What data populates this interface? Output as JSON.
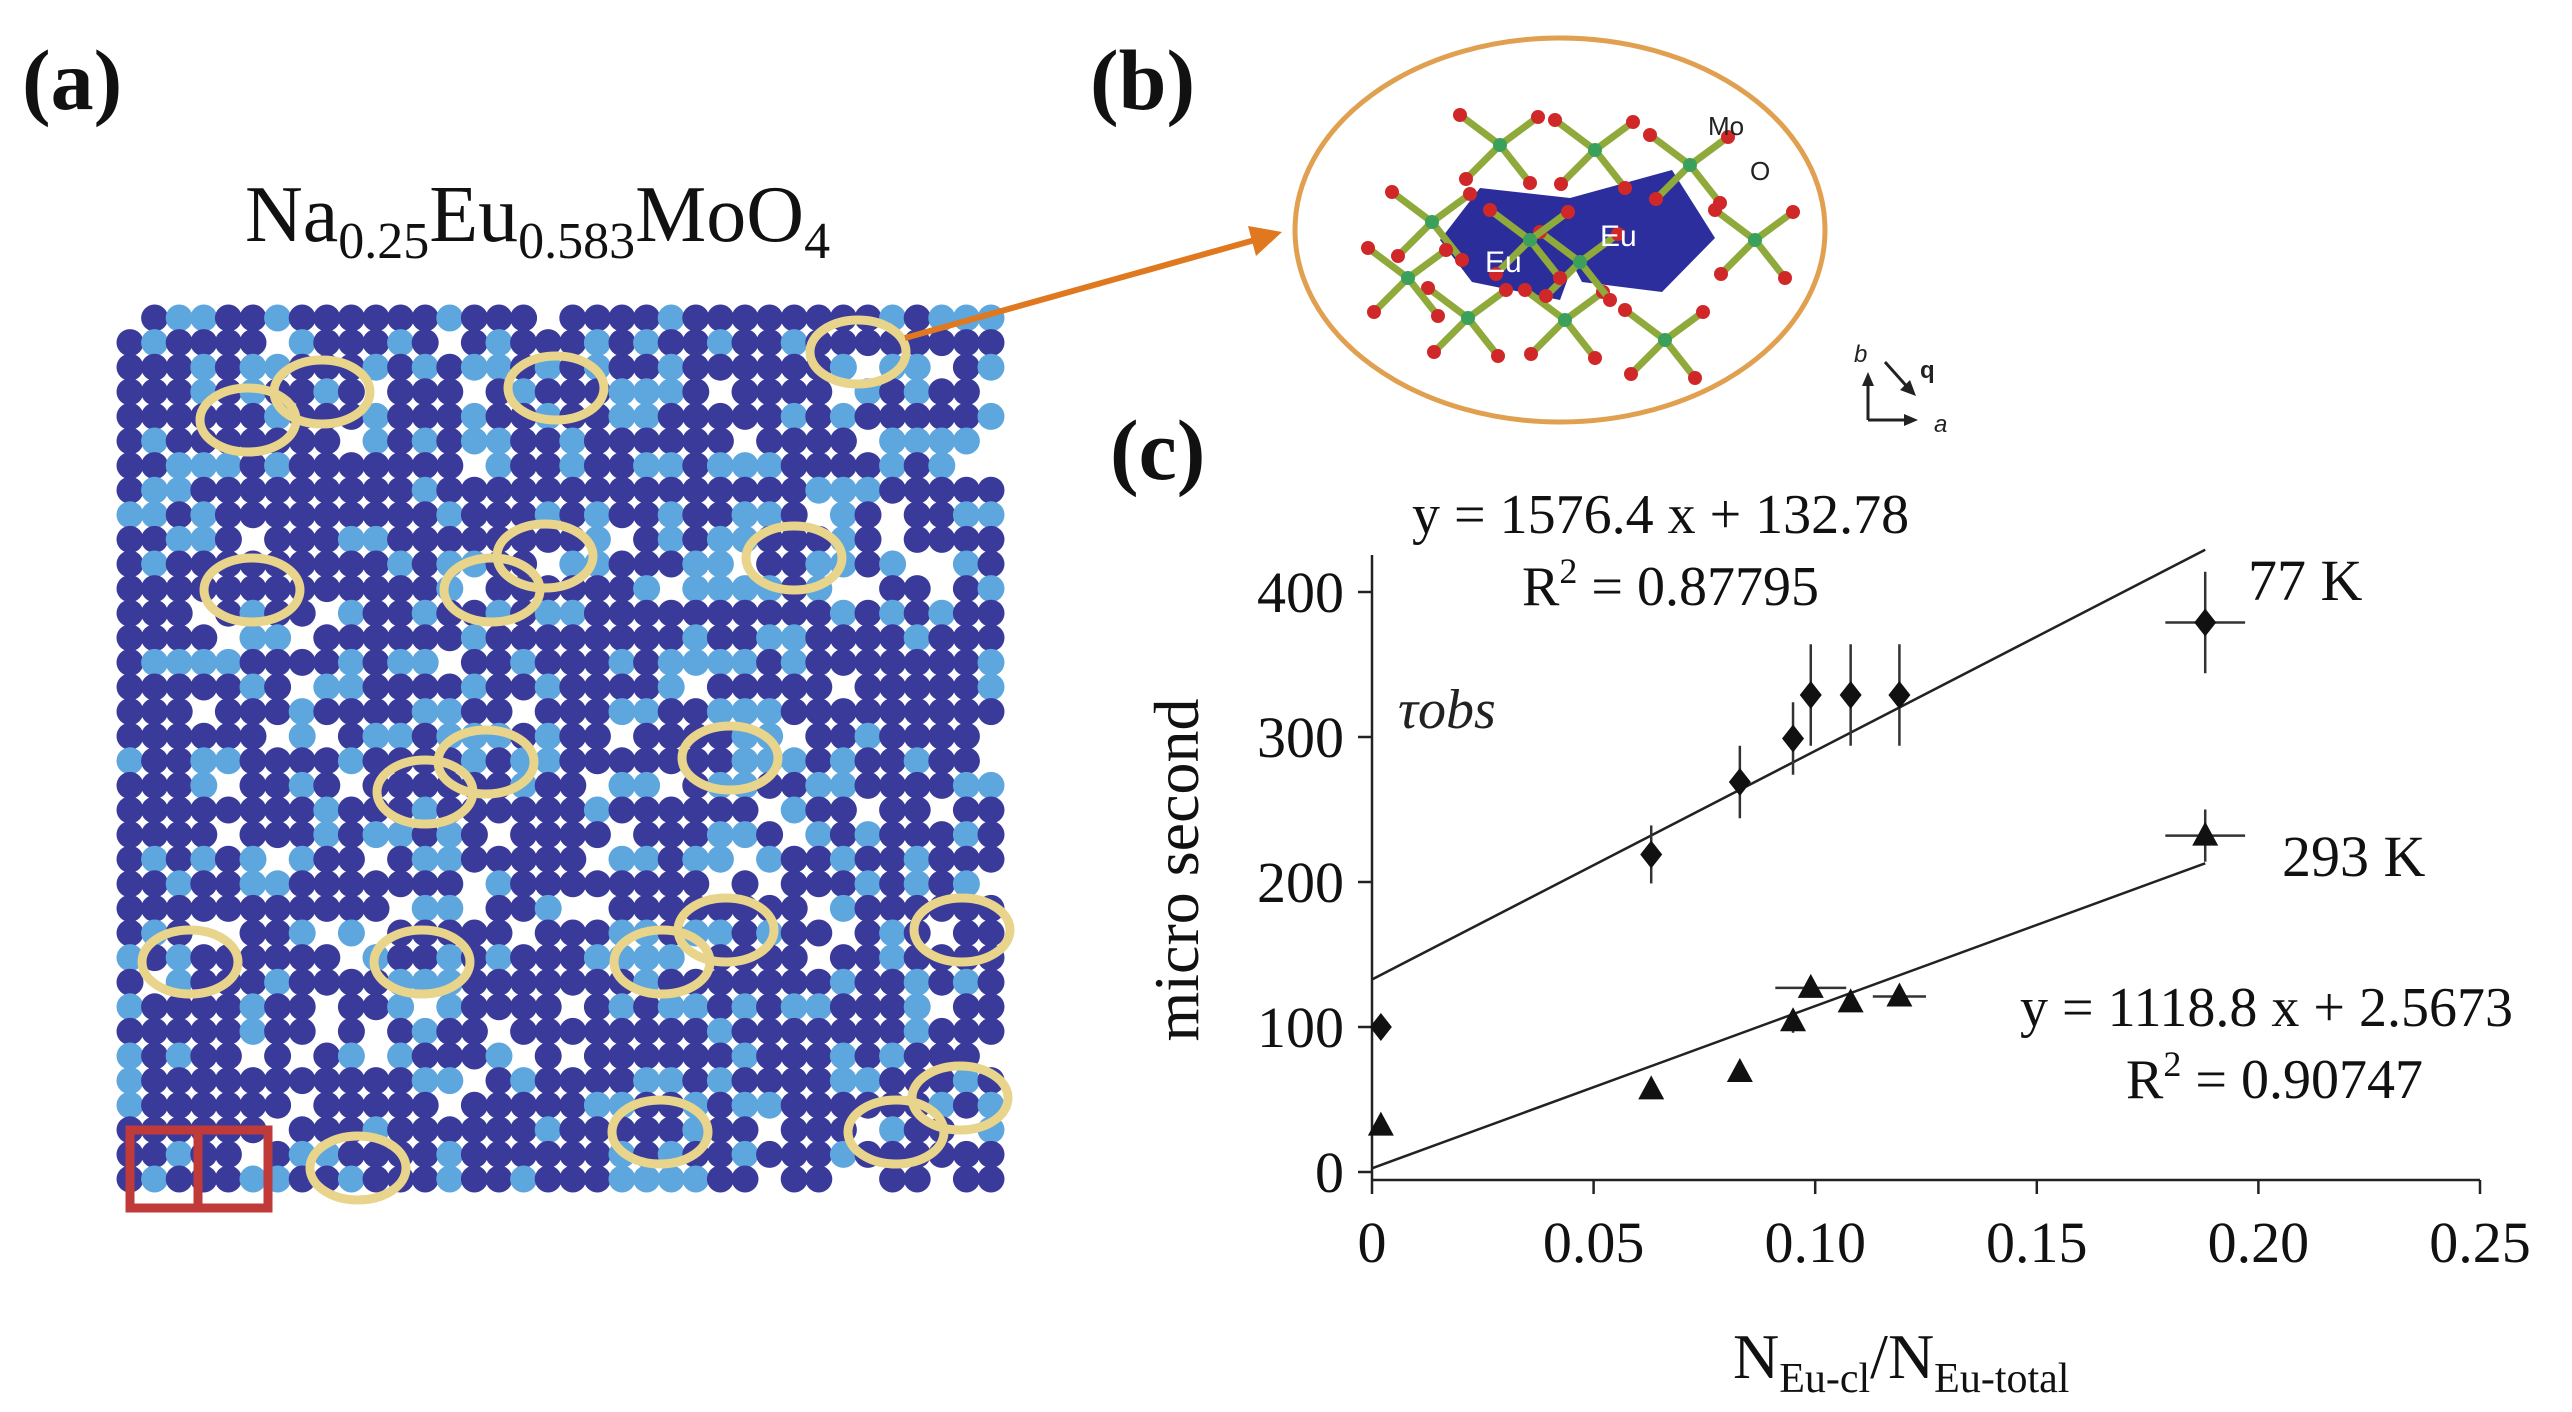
{
  "panels": {
    "a": {
      "label": "(a)",
      "formula": {
        "base1": "Na",
        "sub1": "0.25",
        "base2": "Eu",
        "sub2": "0.583",
        "base3": "MoO",
        "sub3": "4"
      },
      "colors": {
        "eu_site": "#3a3a9a",
        "na_site": "#5ea6de",
        "cluster_ring": "#e8d48a",
        "cell_box": "#c03a3a"
      }
    },
    "b": {
      "label": "(b)",
      "atoms": {
        "eu1": "Eu",
        "eu2": "Eu",
        "mo": "Mo",
        "o": "O"
      },
      "axes": {
        "b": "b",
        "q": "q",
        "a": "a"
      },
      "colors": {
        "polyhedron": "#2b2d9a",
        "bond": "#8faa3a",
        "oxygen": "#d02828",
        "mo": "#3aa05a",
        "ellipse": "#e0a050",
        "arrow": "#e07820"
      }
    },
    "c": {
      "label": "(c)"
    }
  },
  "chart_data": {
    "type": "scatter",
    "title": "",
    "xlabel": {
      "main": "N",
      "sub1": "Eu-cl",
      "slash": "/N",
      "sub2": "Eu-total"
    },
    "ylabel": "micro second",
    "xlim": [
      0,
      0.25
    ],
    "ylim": [
      0,
      400
    ],
    "x_ticks": [
      {
        "v": 0,
        "label": "0"
      },
      {
        "v": 0.05,
        "label": "0.05"
      },
      {
        "v": 0.1,
        "label": "0.10"
      },
      {
        "v": 0.15,
        "label": "0.15"
      },
      {
        "v": 0.2,
        "label": "0.20"
      },
      {
        "v": 0.25,
        "label": "0.25"
      }
    ],
    "y_ticks": [
      {
        "v": 0,
        "label": "0"
      },
      {
        "v": 100,
        "label": "100"
      },
      {
        "v": 200,
        "label": "200"
      },
      {
        "v": 300,
        "label": "300"
      },
      {
        "v": 400,
        "label": "400"
      }
    ],
    "annotation": "τobs",
    "series": [
      {
        "name": "77 K",
        "marker": "diamond",
        "points": [
          {
            "x": 0.002,
            "y": 100
          },
          {
            "x": 0.063,
            "y": 219,
            "yerr": 20
          },
          {
            "x": 0.083,
            "y": 269,
            "yerr": 25
          },
          {
            "x": 0.095,
            "y": 299,
            "yerr": 25
          },
          {
            "x": 0.099,
            "y": 329,
            "yerr": 35
          },
          {
            "x": 0.108,
            "y": 329,
            "yerr": 35
          },
          {
            "x": 0.119,
            "y": 329,
            "yerr": 35
          },
          {
            "x": 0.188,
            "y": 379,
            "yerr": 35,
            "xerr": 0.009
          }
        ],
        "fit": {
          "slope": 1576.4,
          "intercept": 132.78,
          "x_from": 0,
          "x_to": 0.188
        },
        "equation": "y = 1576.4 x + 132.78",
        "r2_label": "R",
        "r2_sup": "2",
        "r2_value": " = 0.87795"
      },
      {
        "name": "293 K",
        "marker": "triangle",
        "points": [
          {
            "x": 0.002,
            "y": 32
          },
          {
            "x": 0.063,
            "y": 57
          },
          {
            "x": 0.083,
            "y": 69
          },
          {
            "x": 0.095,
            "y": 104,
            "yerr": 8
          },
          {
            "x": 0.099,
            "y": 127,
            "xerr": 0.008
          },
          {
            "x": 0.108,
            "y": 117
          },
          {
            "x": 0.119,
            "y": 121,
            "xerr": 0.006
          },
          {
            "x": 0.188,
            "y": 232,
            "xerr": 0.009,
            "yerr": 18
          }
        ],
        "fit": {
          "slope": 1118.8,
          "intercept": 2.5673,
          "x_from": 0,
          "x_to": 0.188
        },
        "equation": "y = 1118.8 x + 2.5673",
        "r2_label": "R",
        "r2_sup": "2",
        "r2_value": " = 0.90747"
      }
    ]
  }
}
